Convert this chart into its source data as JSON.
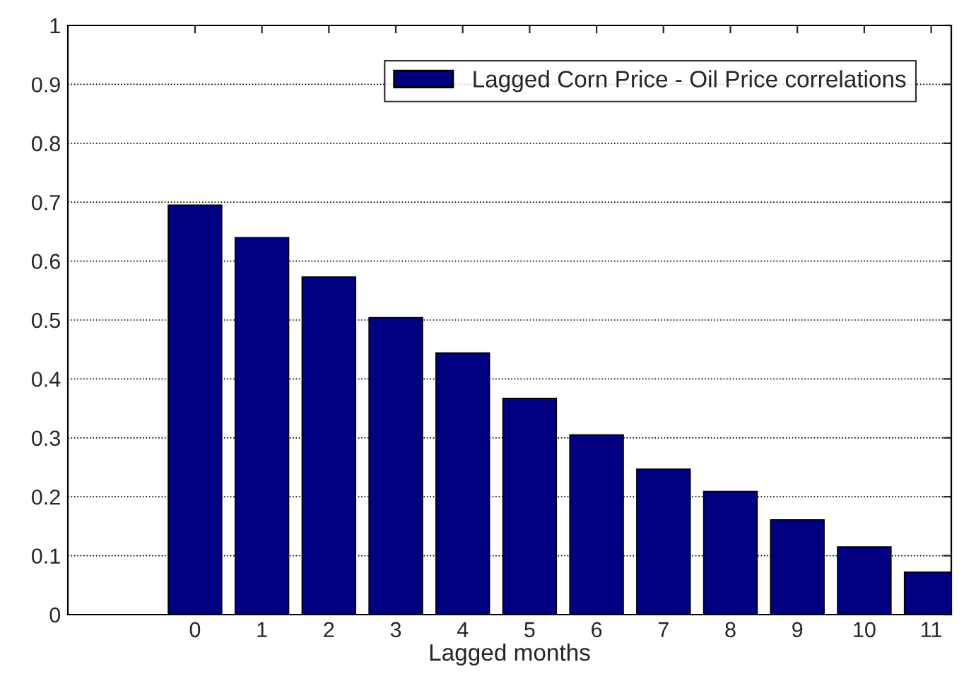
{
  "chart_data": {
    "type": "bar",
    "xlabel": "Lagged months",
    "x": [
      0,
      1,
      2,
      3,
      4,
      5,
      6,
      7,
      8,
      9,
      10,
      11
    ],
    "series": [
      {
        "name": "Lagged Corn Price - Oil Price correlations",
        "color": "#000080",
        "values": [
          0.695,
          0.64,
          0.573,
          0.504,
          0.444,
          0.367,
          0.305,
          0.247,
          0.209,
          0.161,
          0.115,
          0.072
        ]
      }
    ],
    "xlim": [
      -1.9,
      11.3
    ],
    "xticks": [
      0,
      1,
      2,
      3,
      4,
      5,
      6,
      7,
      8,
      9,
      10,
      11
    ],
    "ylim": [
      0,
      1
    ],
    "yticks": [
      0,
      0.1,
      0.2,
      0.3,
      0.4,
      0.5,
      0.6,
      0.7,
      0.8,
      0.9,
      1
    ],
    "grid": "y",
    "legend": "top right"
  }
}
